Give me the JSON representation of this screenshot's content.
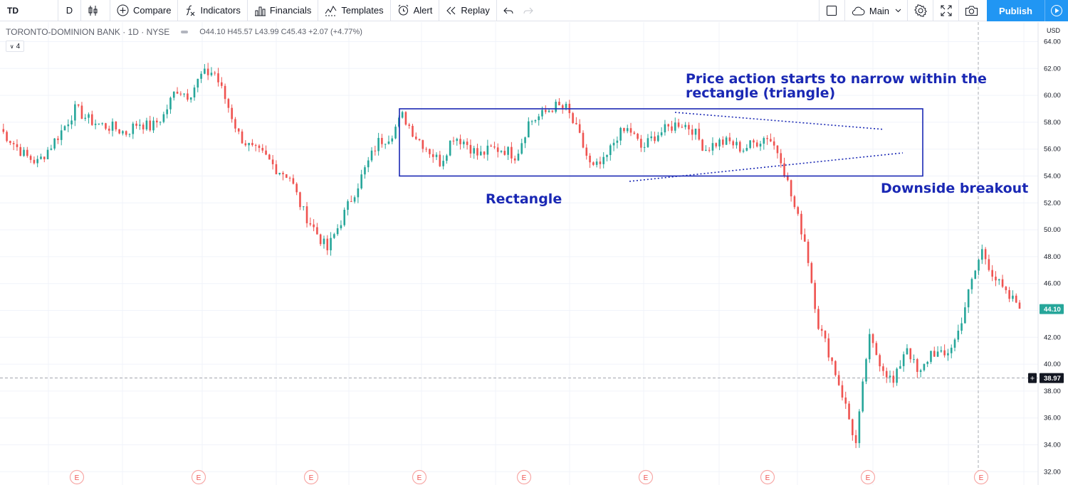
{
  "toolbar": {
    "symbol": "TD",
    "interval": "D",
    "compare": "Compare",
    "indicators": "Indicators",
    "financials": "Financials",
    "templates": "Templates",
    "alert": "Alert",
    "replay": "Replay",
    "layout": "Main",
    "publish": "Publish"
  },
  "legend": {
    "title": "TORONTO-DOMINION BANK · 1D · NYSE",
    "ohlc": "O44.10  H45.57  L43.99  C45.43  +2.07 (+4.77%)",
    "collapse": "4"
  },
  "axis": {
    "currency": "USD",
    "last_price": "44.10",
    "crosshair_price": "38.97"
  },
  "annotations": {
    "narrow_1": "Price action starts to narrow within the",
    "narrow_2": "rectangle (triangle)",
    "rectangle": "Rectangle",
    "breakout": "Downside breakout"
  },
  "colors": {
    "up": "#26a69a",
    "down": "#ef5350",
    "annotation": "#1a28b4",
    "accent": "#2196f3"
  },
  "chart_data": {
    "type": "candlestick",
    "y_ticks": [
      "64.00",
      "62.00",
      "60.00",
      "58.00",
      "56.00",
      "54.00",
      "52.00",
      "50.00",
      "48.00",
      "46.00",
      "44.00",
      "42.00",
      "40.00",
      "38.00",
      "36.00",
      "34.00",
      "32.00"
    ],
    "ylim": [
      31.5,
      65
    ],
    "earnings_marker": "E",
    "earnings_count": 9,
    "rectangle_zone": [
      54.0,
      59.0
    ],
    "close_path": [
      57.5,
      56.5,
      55.5,
      55.0,
      56.2,
      57.5,
      59.0,
      58.2,
      57.8,
      57.6,
      57.2,
      58.0,
      57.6,
      58.5,
      60.5,
      60.0,
      61.5,
      61.8,
      59.5,
      57.0,
      56.0,
      55.5,
      54.5,
      54.0,
      51.5,
      50.0,
      48.5,
      50.5,
      52.5,
      54.5,
      56.5,
      57.0,
      58.5,
      57.0,
      56.0,
      55.0,
      57.0,
      56.5,
      55.5,
      56.0,
      56.0,
      55.5,
      58.0,
      58.5,
      59.2,
      59.0,
      57.0,
      54.5,
      55.0,
      57.0,
      57.5,
      56.0,
      57.0,
      57.5,
      58.0,
      57.5,
      56.0,
      56.5,
      56.5,
      56.0,
      56.5,
      57.0,
      55.5,
      52.0,
      49.0,
      43.0,
      40.5,
      37.5,
      34.0,
      42.0,
      40.0,
      38.5,
      41.5,
      39.0,
      41.0,
      40.5,
      42.0,
      45.5,
      48.5,
      46.5,
      45.0,
      44.5
    ]
  }
}
